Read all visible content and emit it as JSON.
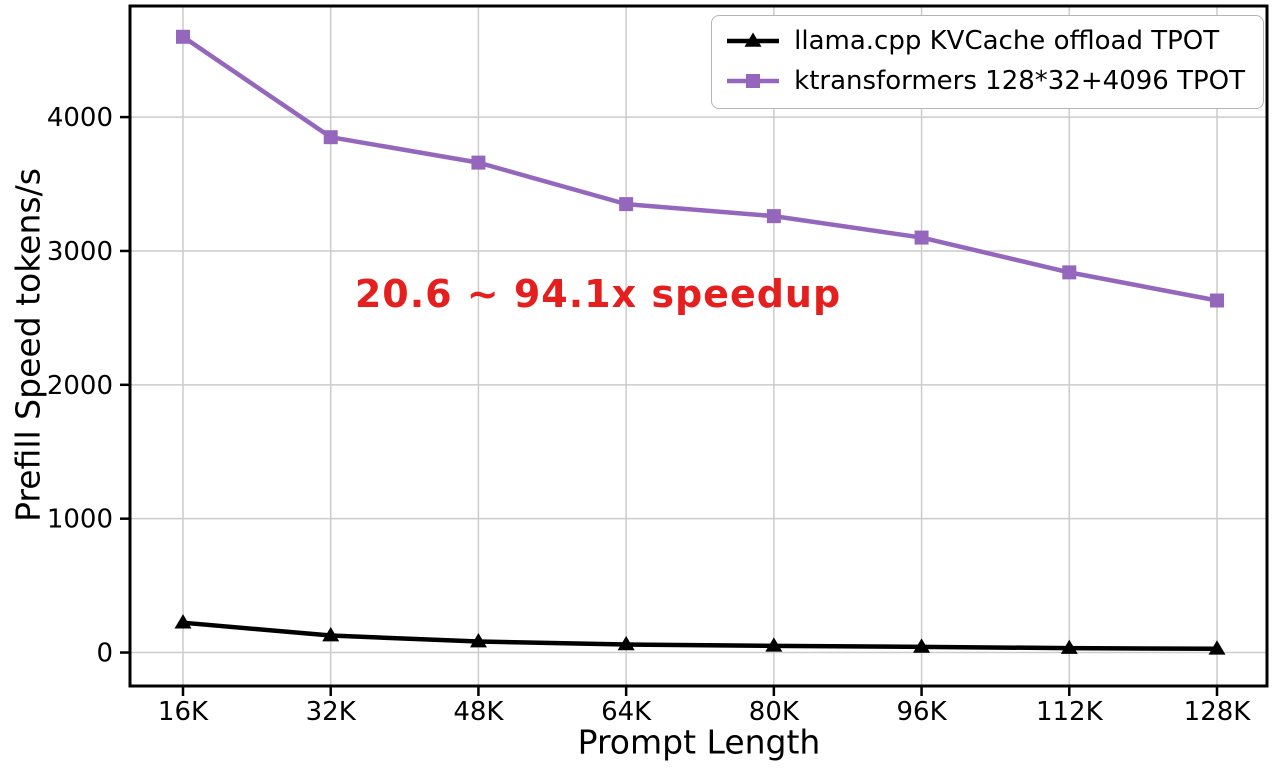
{
  "chart_data": {
    "type": "line",
    "title": "",
    "xlabel": "Prompt Length",
    "ylabel": "Prefill Speed tokens/s",
    "categories": [
      "16K",
      "32K",
      "48K",
      "64K",
      "80K",
      "96K",
      "112K",
      "128K"
    ],
    "series": [
      {
        "name": "llama.cpp KVCache offload TPOT",
        "color": "#000000",
        "marker": "triangle",
        "values": [
          223,
          127,
          82,
          60,
          50,
          42,
          33,
          28
        ]
      },
      {
        "name": "ktransformers 128*32+4096 TPOT",
        "color": "#9467bd",
        "marker": "square",
        "values": [
          4600,
          3850,
          3660,
          3350,
          3260,
          3100,
          2840,
          2630
        ]
      }
    ],
    "yticks": [
      0,
      1000,
      2000,
      3000,
      4000
    ],
    "ylim": [
      -250,
      4830
    ],
    "grid": true,
    "grid_color": "#cccccc",
    "axis_color": "#000000",
    "legend_position": "top-right",
    "annotation": {
      "text": "20.6 ~ 94.1x speedup",
      "color": "#e51e1e"
    }
  }
}
